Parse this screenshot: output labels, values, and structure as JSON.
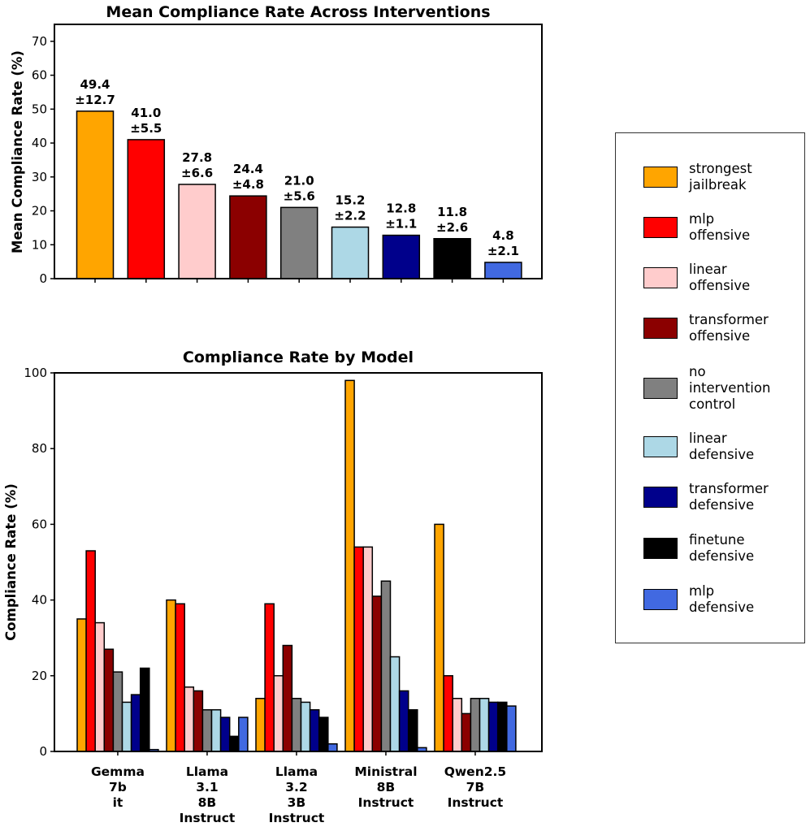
{
  "chart_data": [
    {
      "type": "bar",
      "title": "Mean Compliance Rate Across Interventions",
      "xlabel": "",
      "ylabel": "Mean Compliance Rate (%)",
      "ylim": [
        0,
        75
      ],
      "yticks": [
        0,
        10,
        20,
        30,
        40,
        50,
        60,
        70
      ],
      "categories": [
        "strongest jailbreak",
        "mlp offensive",
        "linear offensive",
        "transformer offensive",
        "no intervention control",
        "linear defensive",
        "transformer defensive",
        "finetune defensive",
        "mlp defensive"
      ],
      "values": [
        49.4,
        41.0,
        27.8,
        24.4,
        21.0,
        15.2,
        12.8,
        11.8,
        4.8
      ],
      "errors": [
        12.7,
        5.5,
        6.6,
        4.8,
        5.6,
        2.2,
        1.1,
        2.6,
        2.1
      ],
      "labels": [
        {
          "mean": "49.4",
          "err": "±12.7"
        },
        {
          "mean": "41.0",
          "err": "±5.5"
        },
        {
          "mean": "27.8",
          "err": "±6.6"
        },
        {
          "mean": "24.4",
          "err": "±4.8"
        },
        {
          "mean": "21.0",
          "err": "±5.6"
        },
        {
          "mean": "15.2",
          "err": "±2.2"
        },
        {
          "mean": "12.8",
          "err": "±1.1"
        },
        {
          "mean": "11.8",
          "err": "±2.6"
        },
        {
          "mean": "4.8",
          "err": "±2.1"
        }
      ],
      "grid": false
    },
    {
      "type": "bar",
      "title": "Compliance Rate by Model",
      "xlabel": "",
      "ylabel": "Compliance Rate (%)",
      "ylim": [
        0,
        100
      ],
      "yticks": [
        0,
        20,
        40,
        60,
        80,
        100
      ],
      "categories": [
        [
          "Gemma",
          "7b",
          "it"
        ],
        [
          "Llama",
          "3.1",
          "8B",
          "Instruct"
        ],
        [
          "Llama",
          "3.2",
          "3B",
          "Instruct"
        ],
        [
          "Ministral",
          "8B",
          "Instruct"
        ],
        [
          "Qwen2.5",
          "7B",
          "Instruct"
        ]
      ],
      "series": [
        {
          "name": "strongest jailbreak",
          "values": [
            35,
            40,
            14,
            98,
            60
          ]
        },
        {
          "name": "mlp offensive",
          "values": [
            53,
            39,
            39,
            54,
            20
          ]
        },
        {
          "name": "linear offensive",
          "values": [
            34,
            17,
            20,
            54,
            14
          ]
        },
        {
          "name": "transformer offensive",
          "values": [
            27,
            16,
            28,
            41,
            10
          ]
        },
        {
          "name": "no intervention control",
          "values": [
            21,
            11,
            14,
            45,
            14
          ]
        },
        {
          "name": "linear defensive",
          "values": [
            13,
            11,
            13,
            25,
            14
          ]
        },
        {
          "name": "transformer defensive",
          "values": [
            15,
            9,
            11,
            16,
            13
          ]
        },
        {
          "name": "finetune defensive",
          "values": [
            22,
            4,
            9,
            11,
            13
          ]
        },
        {
          "name": "mlp defensive",
          "values": [
            0.5,
            9,
            2,
            1,
            12
          ]
        }
      ],
      "grid": false
    }
  ],
  "colors": [
    "#FFA500",
    "#FF0000",
    "#FFCCCC",
    "#8B0000",
    "#808080",
    "#ADD8E6",
    "#00008B",
    "#000000",
    "#4169E1"
  ],
  "legend": {
    "placement": "right",
    "items": [
      {
        "label": "strongest\njailbreak",
        "color": "#FFA500"
      },
      {
        "label": "mlp\noffensive",
        "color": "#FF0000"
      },
      {
        "label": "linear\noffensive",
        "color": "#FFCCCC"
      },
      {
        "label": "transformer\noffensive",
        "color": "#8B0000"
      },
      {
        "label": "no\nintervention\ncontrol",
        "color": "#808080"
      },
      {
        "label": "linear\ndefensive",
        "color": "#ADD8E6"
      },
      {
        "label": "transformer\ndefensive",
        "color": "#00008B"
      },
      {
        "label": "finetune\ndefensive",
        "color": "#000000"
      },
      {
        "label": "mlp\ndefensive",
        "color": "#4169E1"
      }
    ]
  }
}
